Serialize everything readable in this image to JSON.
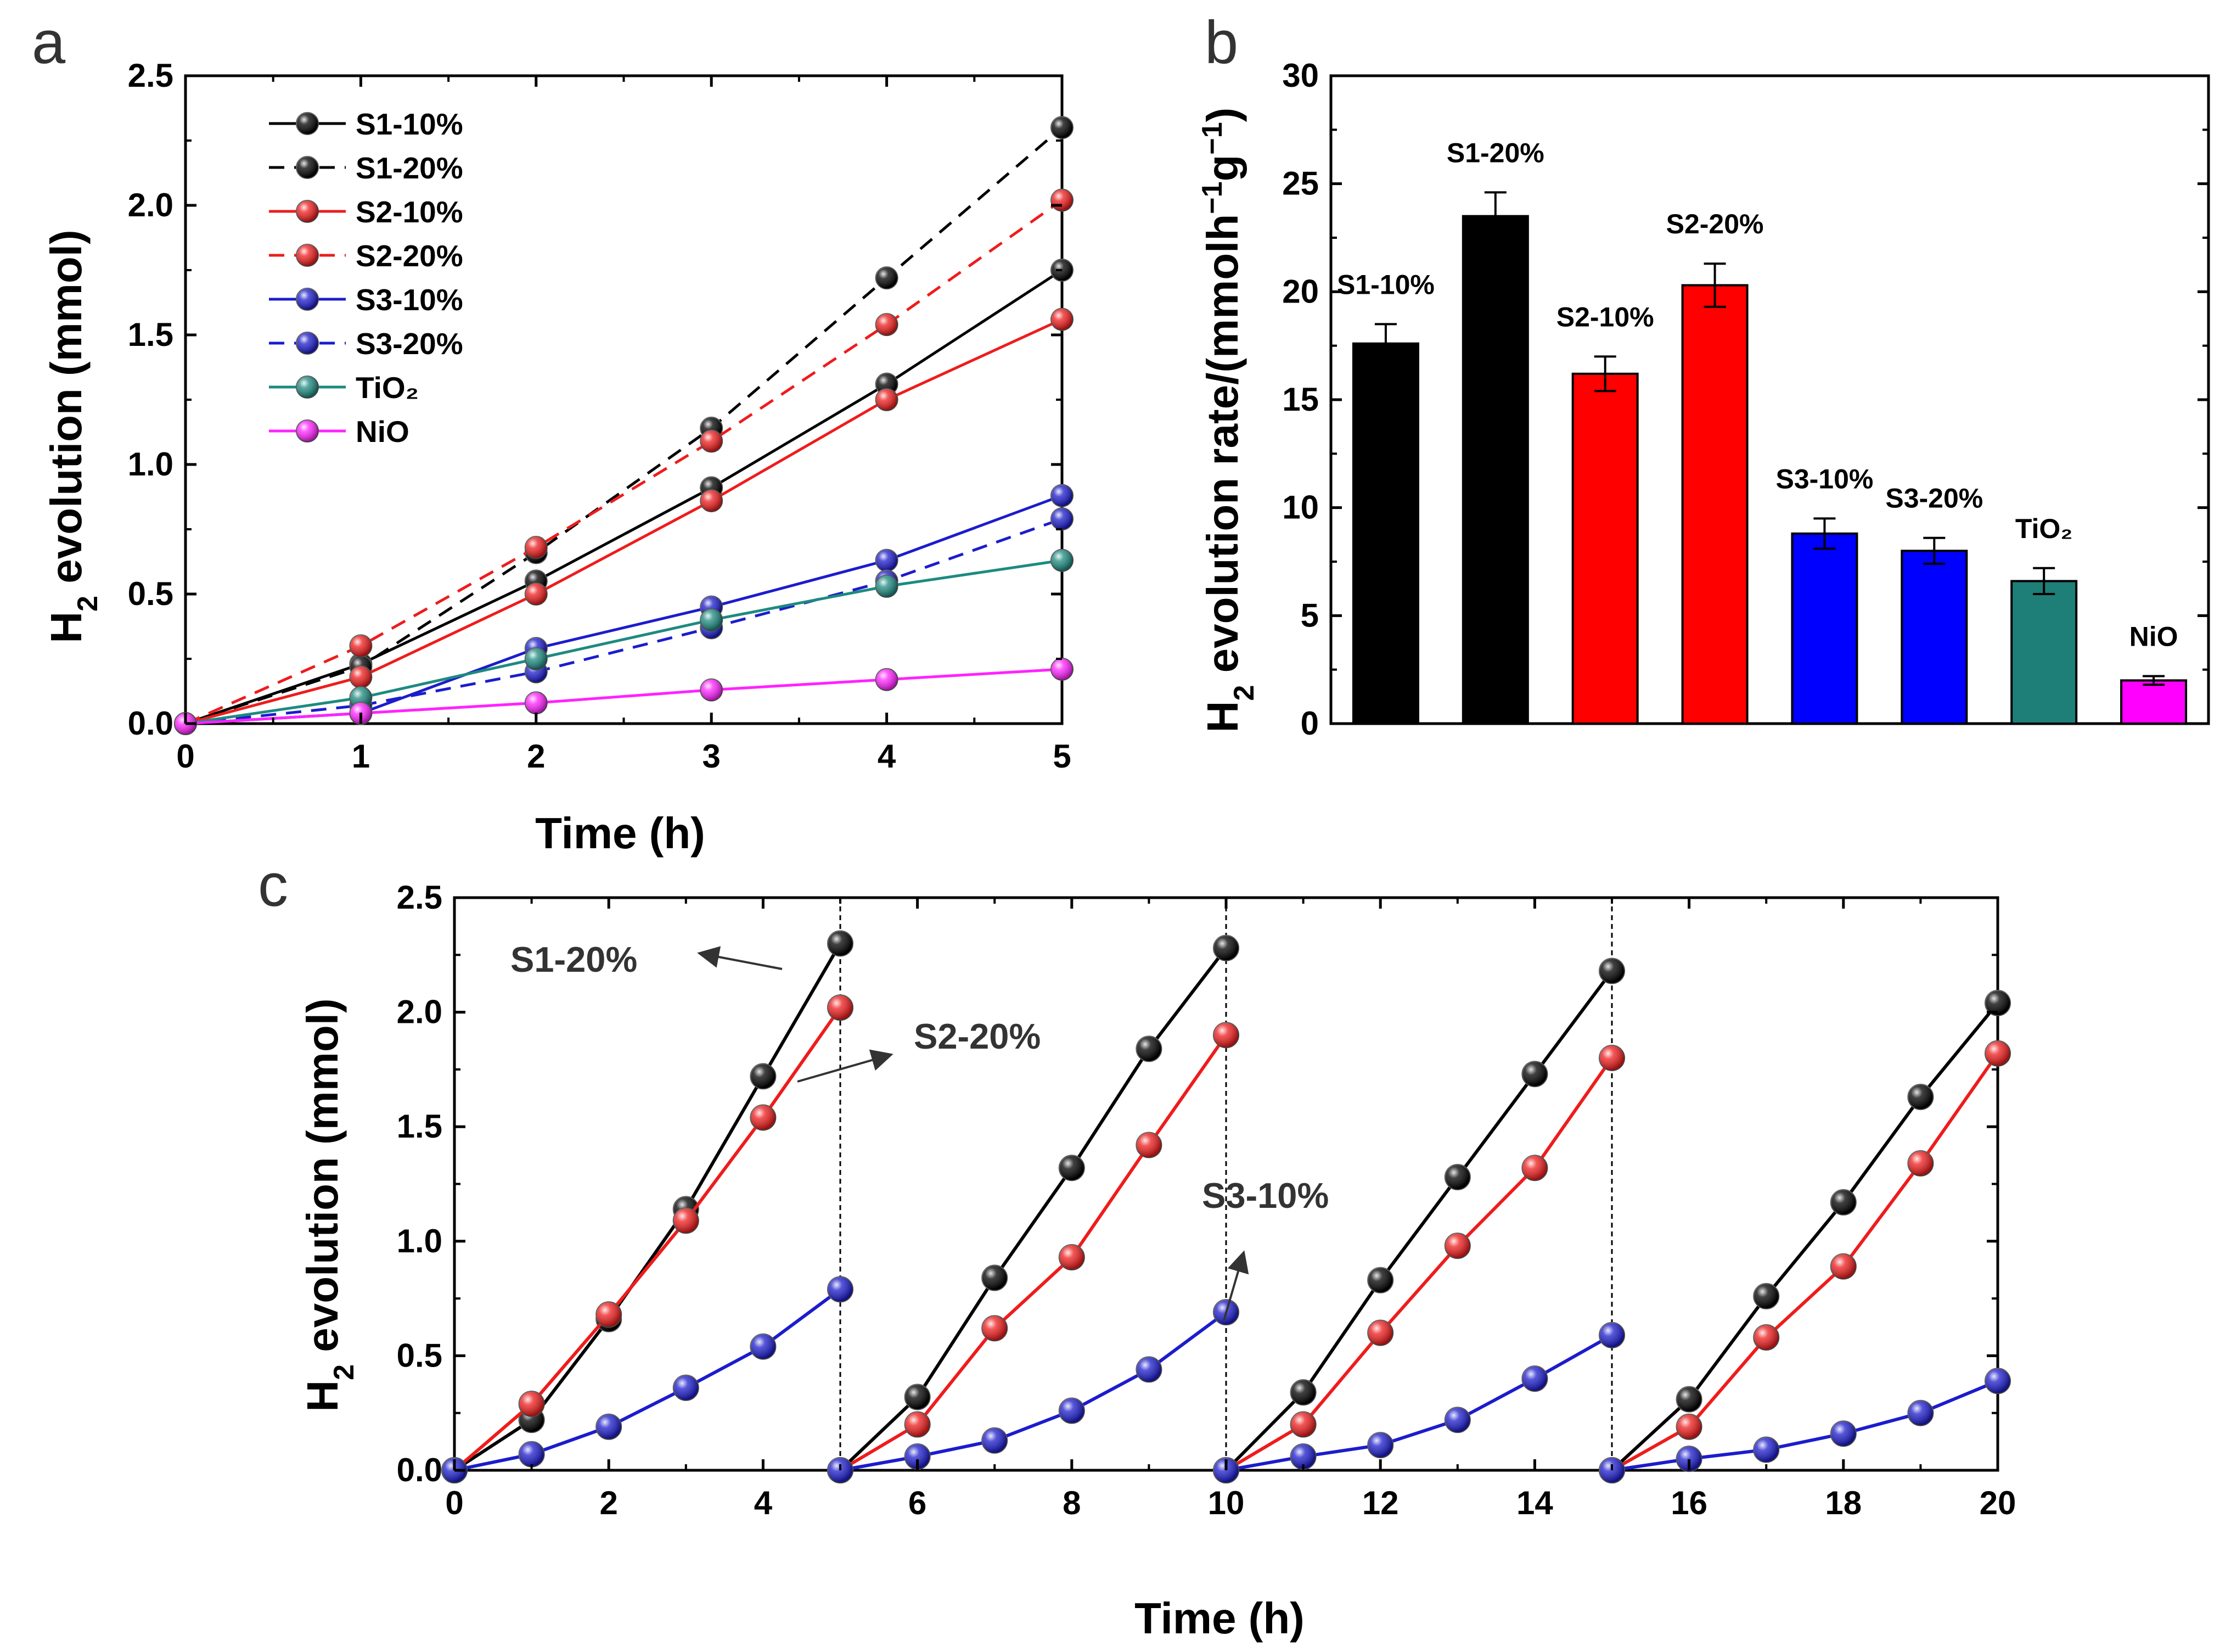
{
  "panel_letters": {
    "a": "a",
    "b": "b",
    "c": "c"
  },
  "chart_data": [
    {
      "id": "a",
      "type": "line",
      "title": "",
      "xlabel": "Time (h)",
      "ylabel": {
        "pre": "H",
        "sub": "2",
        "post": " evolution (mmol)"
      },
      "xlim": [
        0,
        5
      ],
      "ylim": [
        0,
        2.5
      ],
      "xticks": [
        "0",
        "1",
        "2",
        "3",
        "4",
        "5"
      ],
      "yticks": [
        "0.0",
        "0.5",
        "1.0",
        "1.5",
        "2.0",
        "2.5"
      ],
      "x": [
        0,
        1,
        2,
        3,
        4,
        5
      ],
      "legend_position": "top-left",
      "series": [
        {
          "name": "S1-10%",
          "color": "#000000",
          "dash": "solid",
          "values": [
            0,
            0.23,
            0.55,
            0.91,
            1.31,
            1.75
          ]
        },
        {
          "name": "S1-20%",
          "color": "#000000",
          "dash": "dashed",
          "values": [
            0,
            0.22,
            0.66,
            1.14,
            1.72,
            2.3
          ]
        },
        {
          "name": "S2-10%",
          "color": "#ee1c1c",
          "dash": "solid",
          "values": [
            0,
            0.18,
            0.5,
            0.86,
            1.25,
            1.56
          ]
        },
        {
          "name": "S2-20%",
          "color": "#ee1c1c",
          "dash": "dashed",
          "values": [
            0,
            0.3,
            0.68,
            1.09,
            1.54,
            2.02
          ]
        },
        {
          "name": "S3-10%",
          "color": "#1c1ccc",
          "dash": "solid",
          "values": [
            0,
            0.04,
            0.29,
            0.45,
            0.63,
            0.88
          ]
        },
        {
          "name": "S3-20%",
          "color": "#1c1ccc",
          "dash": "dashed",
          "values": [
            0,
            0.07,
            0.2,
            0.37,
            0.55,
            0.79
          ]
        },
        {
          "name": "TiO₂",
          "color": "#1d8a80",
          "dash": "solid",
          "values": [
            0,
            0.1,
            0.25,
            0.4,
            0.53,
            0.63
          ]
        },
        {
          "name": "NiO",
          "color": "#ff22ff",
          "dash": "solid",
          "values": [
            0,
            0.04,
            0.08,
            0.13,
            0.17,
            0.21
          ]
        }
      ]
    },
    {
      "id": "b",
      "type": "bar",
      "title": "",
      "xlabel": "",
      "ylabel": {
        "pre": "H",
        "sub": "2",
        "post": " evolution rate/(mmolh",
        "sup1": "−1",
        "mid": "g",
        "sup2": "−1",
        "end": ")"
      },
      "ylim": [
        0,
        30
      ],
      "yticks": [
        "0",
        "5",
        "10",
        "15",
        "20",
        "25",
        "30"
      ],
      "categories": [
        "S1-10%",
        "S1-20%",
        "S2-10%",
        "S2-20%",
        "S3-10%",
        "S3-20%",
        "TiO₂",
        "NiO"
      ],
      "values": [
        17.6,
        23.5,
        16.2,
        20.3,
        8.8,
        8.0,
        6.6,
        2.0
      ],
      "errors": [
        0.9,
        1.1,
        0.8,
        1.0,
        0.7,
        0.6,
        0.6,
        0.2
      ],
      "colors": [
        "#000000",
        "#000000",
        "#ff0000",
        "#ff0000",
        "#0000ff",
        "#0000ff",
        "#1d7f78",
        "#ff00ff"
      ]
    },
    {
      "id": "c",
      "type": "line",
      "title": "",
      "xlabel": "Time (h)",
      "ylabel": {
        "pre": "H",
        "sub": "2",
        "post": " evolution (mmol)"
      },
      "xlim": [
        0,
        20
      ],
      "ylim": [
        0,
        2.5
      ],
      "xticks": [
        "0",
        "2",
        "4",
        "6",
        "8",
        "10",
        "12",
        "14",
        "16",
        "18",
        "20"
      ],
      "yticks": [
        "0.0",
        "0.5",
        "1.0",
        "1.5",
        "2.0",
        "2.5"
      ],
      "cycle_dividers": [
        5,
        10,
        15
      ],
      "x": [
        0,
        1,
        2,
        3,
        4,
        5,
        5,
        6,
        7,
        8,
        9,
        10,
        10,
        11,
        12,
        13,
        14,
        15,
        15,
        16,
        17,
        18,
        19,
        20
      ],
      "series": [
        {
          "name": "S1-20%",
          "color": "#000000",
          "cycles": [
            [
              0,
              0.22,
              0.66,
              1.14,
              1.72,
              2.3
            ],
            [
              0,
              0.32,
              0.84,
              1.32,
              1.84,
              2.28
            ],
            [
              0,
              0.34,
              0.83,
              1.28,
              1.73,
              2.18
            ],
            [
              0,
              0.31,
              0.76,
              1.17,
              1.63,
              2.04
            ]
          ]
        },
        {
          "name": "S2-20%",
          "color": "#ee1c1c",
          "cycles": [
            [
              0,
              0.29,
              0.68,
              1.09,
              1.54,
              2.02
            ],
            [
              0,
              0.2,
              0.62,
              0.93,
              1.42,
              1.9
            ],
            [
              0,
              0.2,
              0.6,
              0.98,
              1.32,
              1.8
            ],
            [
              0,
              0.19,
              0.58,
              0.89,
              1.34,
              1.82
            ]
          ]
        },
        {
          "name": "S3-10%",
          "color": "#1c1ccc",
          "cycles": [
            [
              0,
              0.07,
              0.19,
              0.36,
              0.54,
              0.79
            ],
            [
              0,
              0.06,
              0.13,
              0.26,
              0.44,
              0.69
            ],
            [
              0,
              0.06,
              0.11,
              0.22,
              0.4,
              0.59
            ],
            [
              0,
              0.05,
              0.09,
              0.16,
              0.25,
              0.39
            ]
          ]
        }
      ],
      "annotations": [
        "S1-20%",
        "S2-20%",
        "S3-10%"
      ]
    }
  ]
}
